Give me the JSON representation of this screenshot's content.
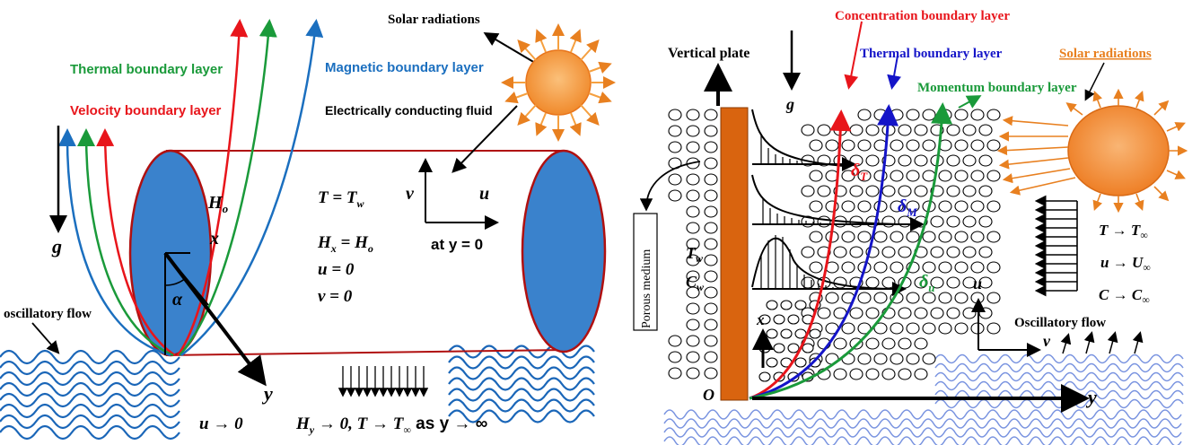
{
  "left": {
    "labels": {
      "solar_radiations": "Solar radiations",
      "thermal_boundary_layer": "Thermal boundary layer",
      "magnetic_boundary_layer": "Magnetic boundary layer",
      "velocity_boundary_layer": "Velocity boundary layer",
      "electrically_conducting_fluid": "Electrically conducting fluid",
      "oscillatory_flow": "oscillatory flow"
    },
    "symbols": {
      "H0": "H",
      "H0_sub": "o",
      "x": "x",
      "alpha": "α",
      "g": "g",
      "y": "y",
      "v": "v",
      "u": "u"
    },
    "equations": {
      "T_eq": "T = T",
      "T_eq_sub": "w",
      "Hx_eq_a": "H",
      "Hx_eq_sub": "x",
      "Hx_eq_b": " = H",
      "Hx_eq_sub2": "o",
      "u_eq": "u = 0",
      "v_eq": "v = 0",
      "at_y0": "at y = 0",
      "u_inf": "u → 0",
      "bc_far_a": "H",
      "bc_far_sub": "y",
      "bc_far_b": " → 0,  T → T",
      "bc_far_sub2": "∞",
      "bc_far_c": "  as y → ∞"
    },
    "colors": {
      "velocity": "#e8151b",
      "thermal": "#1a9a3a",
      "magnetic": "#1b6fbf",
      "cylinder_fill": "#3a82cc",
      "cylinder_edge": "#b01010",
      "sun": "#f5a040",
      "wave": "#1a66b8"
    }
  },
  "right": {
    "labels": {
      "concentration_boundary_layer": "Concentration boundary layer",
      "vertical_plate": "Vertical plate",
      "thermal_boundary_layer": "Thermal boundary layer",
      "solar_radiations": "Solar radiations",
      "momentum_boundary_layer": "Momentum boundary layer",
      "porous_medium": "Porous medium",
      "oscillatory_flow": "Oscillatory flow"
    },
    "symbols": {
      "g": "g",
      "delta_T": "δ",
      "delta_T_sub": "T",
      "delta_M": "δ",
      "delta_M_sub": "M",
      "delta_u": "δ",
      "delta_u_sub": "u",
      "Tw": "T",
      "Tw_sub": "w",
      "Cw": "C",
      "Cw_sub": "w",
      "x": "x",
      "O": "O",
      "y": "y",
      "u": "u",
      "v": "v"
    },
    "equations": {
      "T_inf_a": "T → T",
      "T_inf_sub": "∞",
      "u_inf_a": "u → U",
      "u_inf_sub": "∞",
      "C_inf_a": "C → C",
      "C_inf_sub": "∞"
    },
    "colors": {
      "concentration": "#e8151b",
      "thermal": "#1414c8",
      "momentum": "#1a9a3a",
      "plate": "#d9640f",
      "sun": "#f39a40",
      "wave": "#7a94e0"
    }
  }
}
